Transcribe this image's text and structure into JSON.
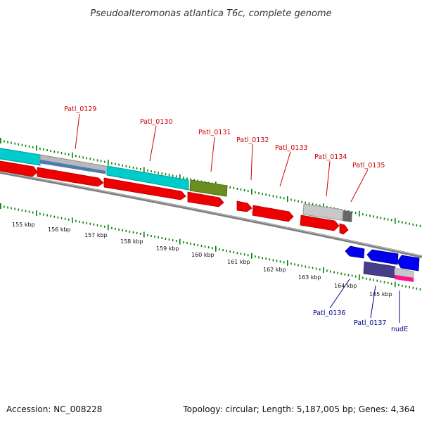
{
  "title": "Pseudoalteromonas atlantica T6c, complete genome",
  "footer": {
    "accession": "Accession: NC_008228",
    "summary": "Topology: circular; Length: 5,187,005 bp; Genes: 4,364"
  },
  "colors": {
    "background": "#ffffff",
    "forward_label": "#cc0000",
    "reverse_label": "#00008b",
    "tick": "#008000",
    "backbone": "#7f7f7f",
    "cyan_feature": "#00cccc",
    "red_feature": "#ee0000",
    "olive_feature": "#6b8e23",
    "gray_feature": "#c8c8c8",
    "blue_feature": "#0000ee",
    "purple_feature": "#483d8b",
    "pink_feature": "#ff1493"
  },
  "scale": {
    "unit": "kbp",
    "labels": [
      "155 kbp",
      "156 kbp",
      "157 kbp",
      "158 kbp",
      "159 kbp",
      "160 kbp",
      "161 kbp",
      "162 kbp",
      "163 kbp",
      "164 kbp",
      "165 kbp"
    ]
  },
  "genes": [
    {
      "label": "Patl_0129",
      "strand": "forward"
    },
    {
      "label": "Patl_0130",
      "strand": "forward"
    },
    {
      "label": "Patl_0131",
      "strand": "forward"
    },
    {
      "label": "Patl_0132",
      "strand": "forward"
    },
    {
      "label": "Patl_0133",
      "strand": "forward"
    },
    {
      "label": "Patl_0134",
      "strand": "forward"
    },
    {
      "label": "Patl_0135",
      "strand": "forward"
    },
    {
      "label": "Patl_0136",
      "strand": "reverse"
    },
    {
      "label": "Patl_0137",
      "strand": "reverse"
    },
    {
      "label": "nudE",
      "strand": "reverse"
    }
  ]
}
